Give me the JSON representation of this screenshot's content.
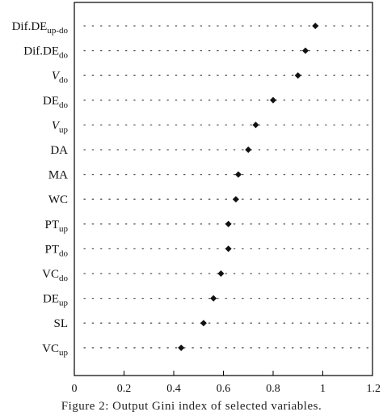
{
  "chart_data": {
    "type": "scatter",
    "orientation": "horizontal-dot",
    "categories": [
      {
        "base": "Dif.DE",
        "sub": "up-do",
        "italic": false
      },
      {
        "base": "Dif.DE",
        "sub": "do",
        "italic": false
      },
      {
        "base": "V",
        "sub": "do",
        "italic": true
      },
      {
        "base": "DE",
        "sub": "do",
        "italic": false
      },
      {
        "base": "V",
        "sub": "up",
        "italic": true
      },
      {
        "base": "DA",
        "sub": "",
        "italic": false
      },
      {
        "base": "MA",
        "sub": "",
        "italic": false
      },
      {
        "base": "WC",
        "sub": "",
        "italic": false
      },
      {
        "base": "PT",
        "sub": "up",
        "italic": false
      },
      {
        "base": "PT",
        "sub": "do",
        "italic": false
      },
      {
        "base": "VC",
        "sub": "do",
        "italic": false
      },
      {
        "base": "DE",
        "sub": "up",
        "italic": false
      },
      {
        "base": "SL",
        "sub": "",
        "italic": false
      },
      {
        "base": "VC",
        "sub": "up",
        "italic": false
      }
    ],
    "values": [
      0.97,
      0.93,
      0.9,
      0.8,
      0.73,
      0.7,
      0.66,
      0.65,
      0.62,
      0.62,
      0.59,
      0.56,
      0.52,
      0.43
    ],
    "xticks": [
      "0",
      "0.2",
      "0.4",
      "0.6",
      "0.8",
      "1",
      "1.2"
    ],
    "xlim": [
      0,
      1.2
    ],
    "grid": "dotted horizontal guide lines",
    "marker": "diamond",
    "marker_color": "#111111"
  },
  "caption": "Figure 2: Output Gini index of selected variables."
}
